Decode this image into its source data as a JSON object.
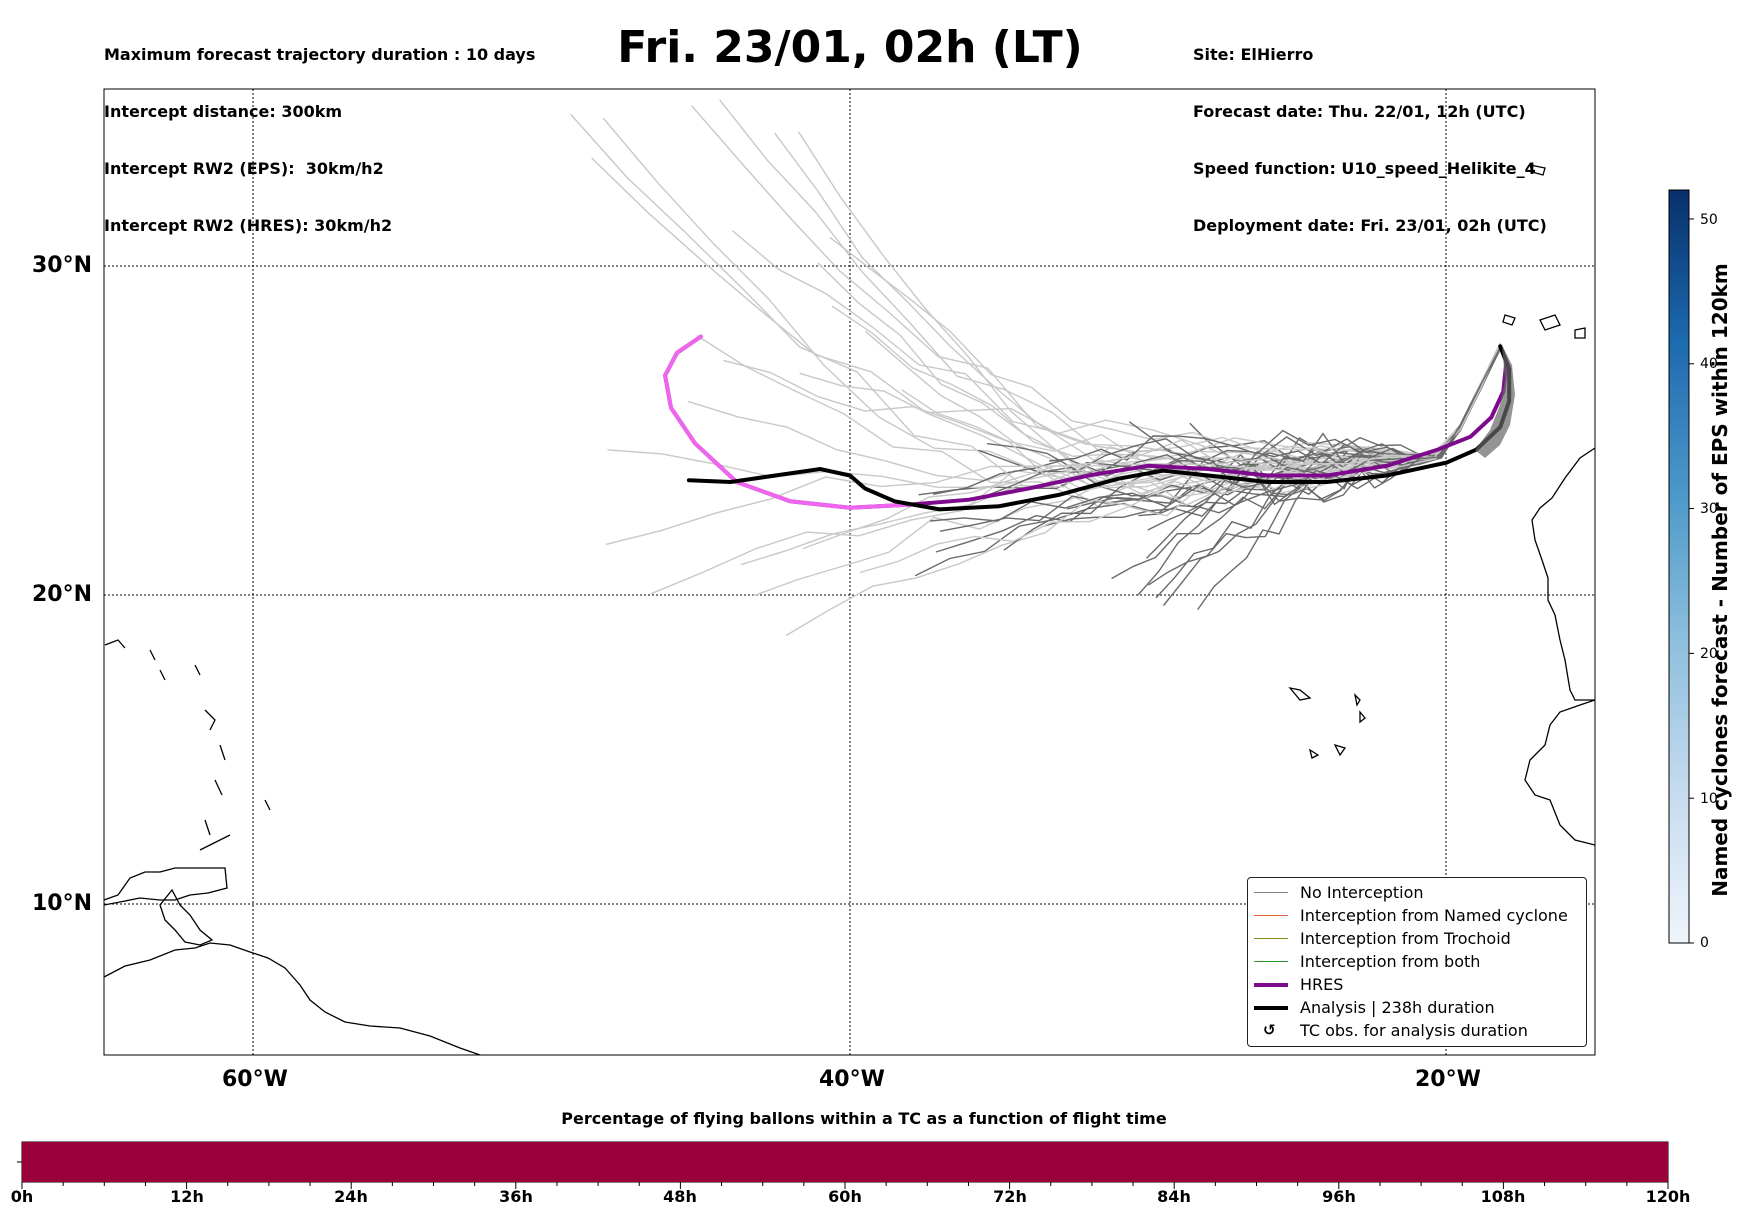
{
  "header": {
    "title": "Fri. 23/01, 02h (LT)",
    "left_lines": [
      "Maximum forecast trajectory duration : 10 days",
      "Intercept distance: 300km",
      "Intercept RW2 (EPS):  30km/h2",
      "Intercept RW2 (HRES): 30km/h2"
    ],
    "right_lines": [
      "Site: ElHierro",
      "Forecast date: Thu. 22/01, 12h (UTC)",
      "Speed function: U10_speed_Helikite_4",
      "Deployment date: Fri. 23/01, 02h (UTC)"
    ]
  },
  "map": {
    "lat_labels": [
      "30°N",
      "20°N",
      "10°N"
    ],
    "lon_labels": [
      "60°W",
      "40°W",
      "20°W"
    ],
    "gridlines": "dotted",
    "extent": {
      "lon": [
        -65,
        -15
      ],
      "lat": [
        5.2,
        35.8
      ]
    }
  },
  "legend": {
    "items": [
      {
        "label": "No Interception",
        "color": "#808080"
      },
      {
        "label": "Interception from Named cyclone",
        "color": "#e8603c"
      },
      {
        "label": "Interception from Trochoid",
        "color": "#8b8b1a"
      },
      {
        "label": "Interception from both",
        "color": "#2e9a2e"
      },
      {
        "label": "HRES",
        "color": "#7d0a8c"
      },
      {
        "label": "Analysis | 238h duration",
        "color": "#000000"
      },
      {
        "label": "TC obs. for analysis duration",
        "icon": "cyclone-icon"
      }
    ]
  },
  "colorbar": {
    "label": "Named cyclones forecast - Number of EPS within 120km",
    "ticks": [
      "0",
      "10",
      "20",
      "30",
      "40",
      "50"
    ],
    "colors": [
      "#eef5fc",
      "#08306b"
    ]
  },
  "timebar": {
    "title": "Percentage of flying ballons within a TC as a function of flight time",
    "ticks": [
      "0h",
      "12h",
      "24h",
      "36h",
      "48h",
      "60h",
      "72h",
      "84h",
      "96h",
      "108h",
      "120h"
    ],
    "fill_color": "#9c003a",
    "fill_percent": 100
  },
  "trajectories": {
    "hres": [
      [
        -18.2,
        27.7
      ],
      [
        -18.0,
        27.2
      ],
      [
        -18.1,
        26.3
      ],
      [
        -18.5,
        25.5
      ],
      [
        -19.2,
        24.9
      ],
      [
        -20.3,
        24.5
      ],
      [
        -22.0,
        24.0
      ],
      [
        -24.0,
        23.7
      ],
      [
        -26.0,
        23.7
      ],
      [
        -28.0,
        23.9
      ],
      [
        -30.0,
        24.0
      ],
      [
        -32.0,
        23.7
      ],
      [
        -34.0,
        23.3
      ],
      [
        -36.0,
        22.95
      ],
      [
        -38.0,
        22.8
      ],
      [
        -40.0,
        22.7
      ],
      [
        -42.0,
        22.9
      ],
      [
        -43.8,
        23.5
      ],
      [
        -45.2,
        24.7
      ],
      [
        -46.0,
        25.8
      ],
      [
        -46.2,
        26.8
      ],
      [
        -45.8,
        27.5
      ],
      [
        -45.0,
        28.0
      ]
    ],
    "analysis": [
      [
        -18.2,
        27.7
      ],
      [
        -17.9,
        27.0
      ],
      [
        -17.9,
        26.0
      ],
      [
        -18.2,
        25.2
      ],
      [
        -19.0,
        24.5
      ],
      [
        -20.0,
        24.1
      ],
      [
        -22.0,
        23.7
      ],
      [
        -24.0,
        23.5
      ],
      [
        -26.0,
        23.5
      ],
      [
        -28.0,
        23.7
      ],
      [
        -29.5,
        23.85
      ],
      [
        -31.0,
        23.6
      ],
      [
        -33.0,
        23.1
      ],
      [
        -35.0,
        22.75
      ],
      [
        -37.0,
        22.65
      ],
      [
        -38.5,
        22.9
      ],
      [
        -39.5,
        23.3
      ],
      [
        -40.0,
        23.7
      ],
      [
        -41.0,
        23.9
      ],
      [
        -42.5,
        23.7
      ],
      [
        -44.0,
        23.5
      ],
      [
        -45.4,
        23.55
      ]
    ]
  }
}
